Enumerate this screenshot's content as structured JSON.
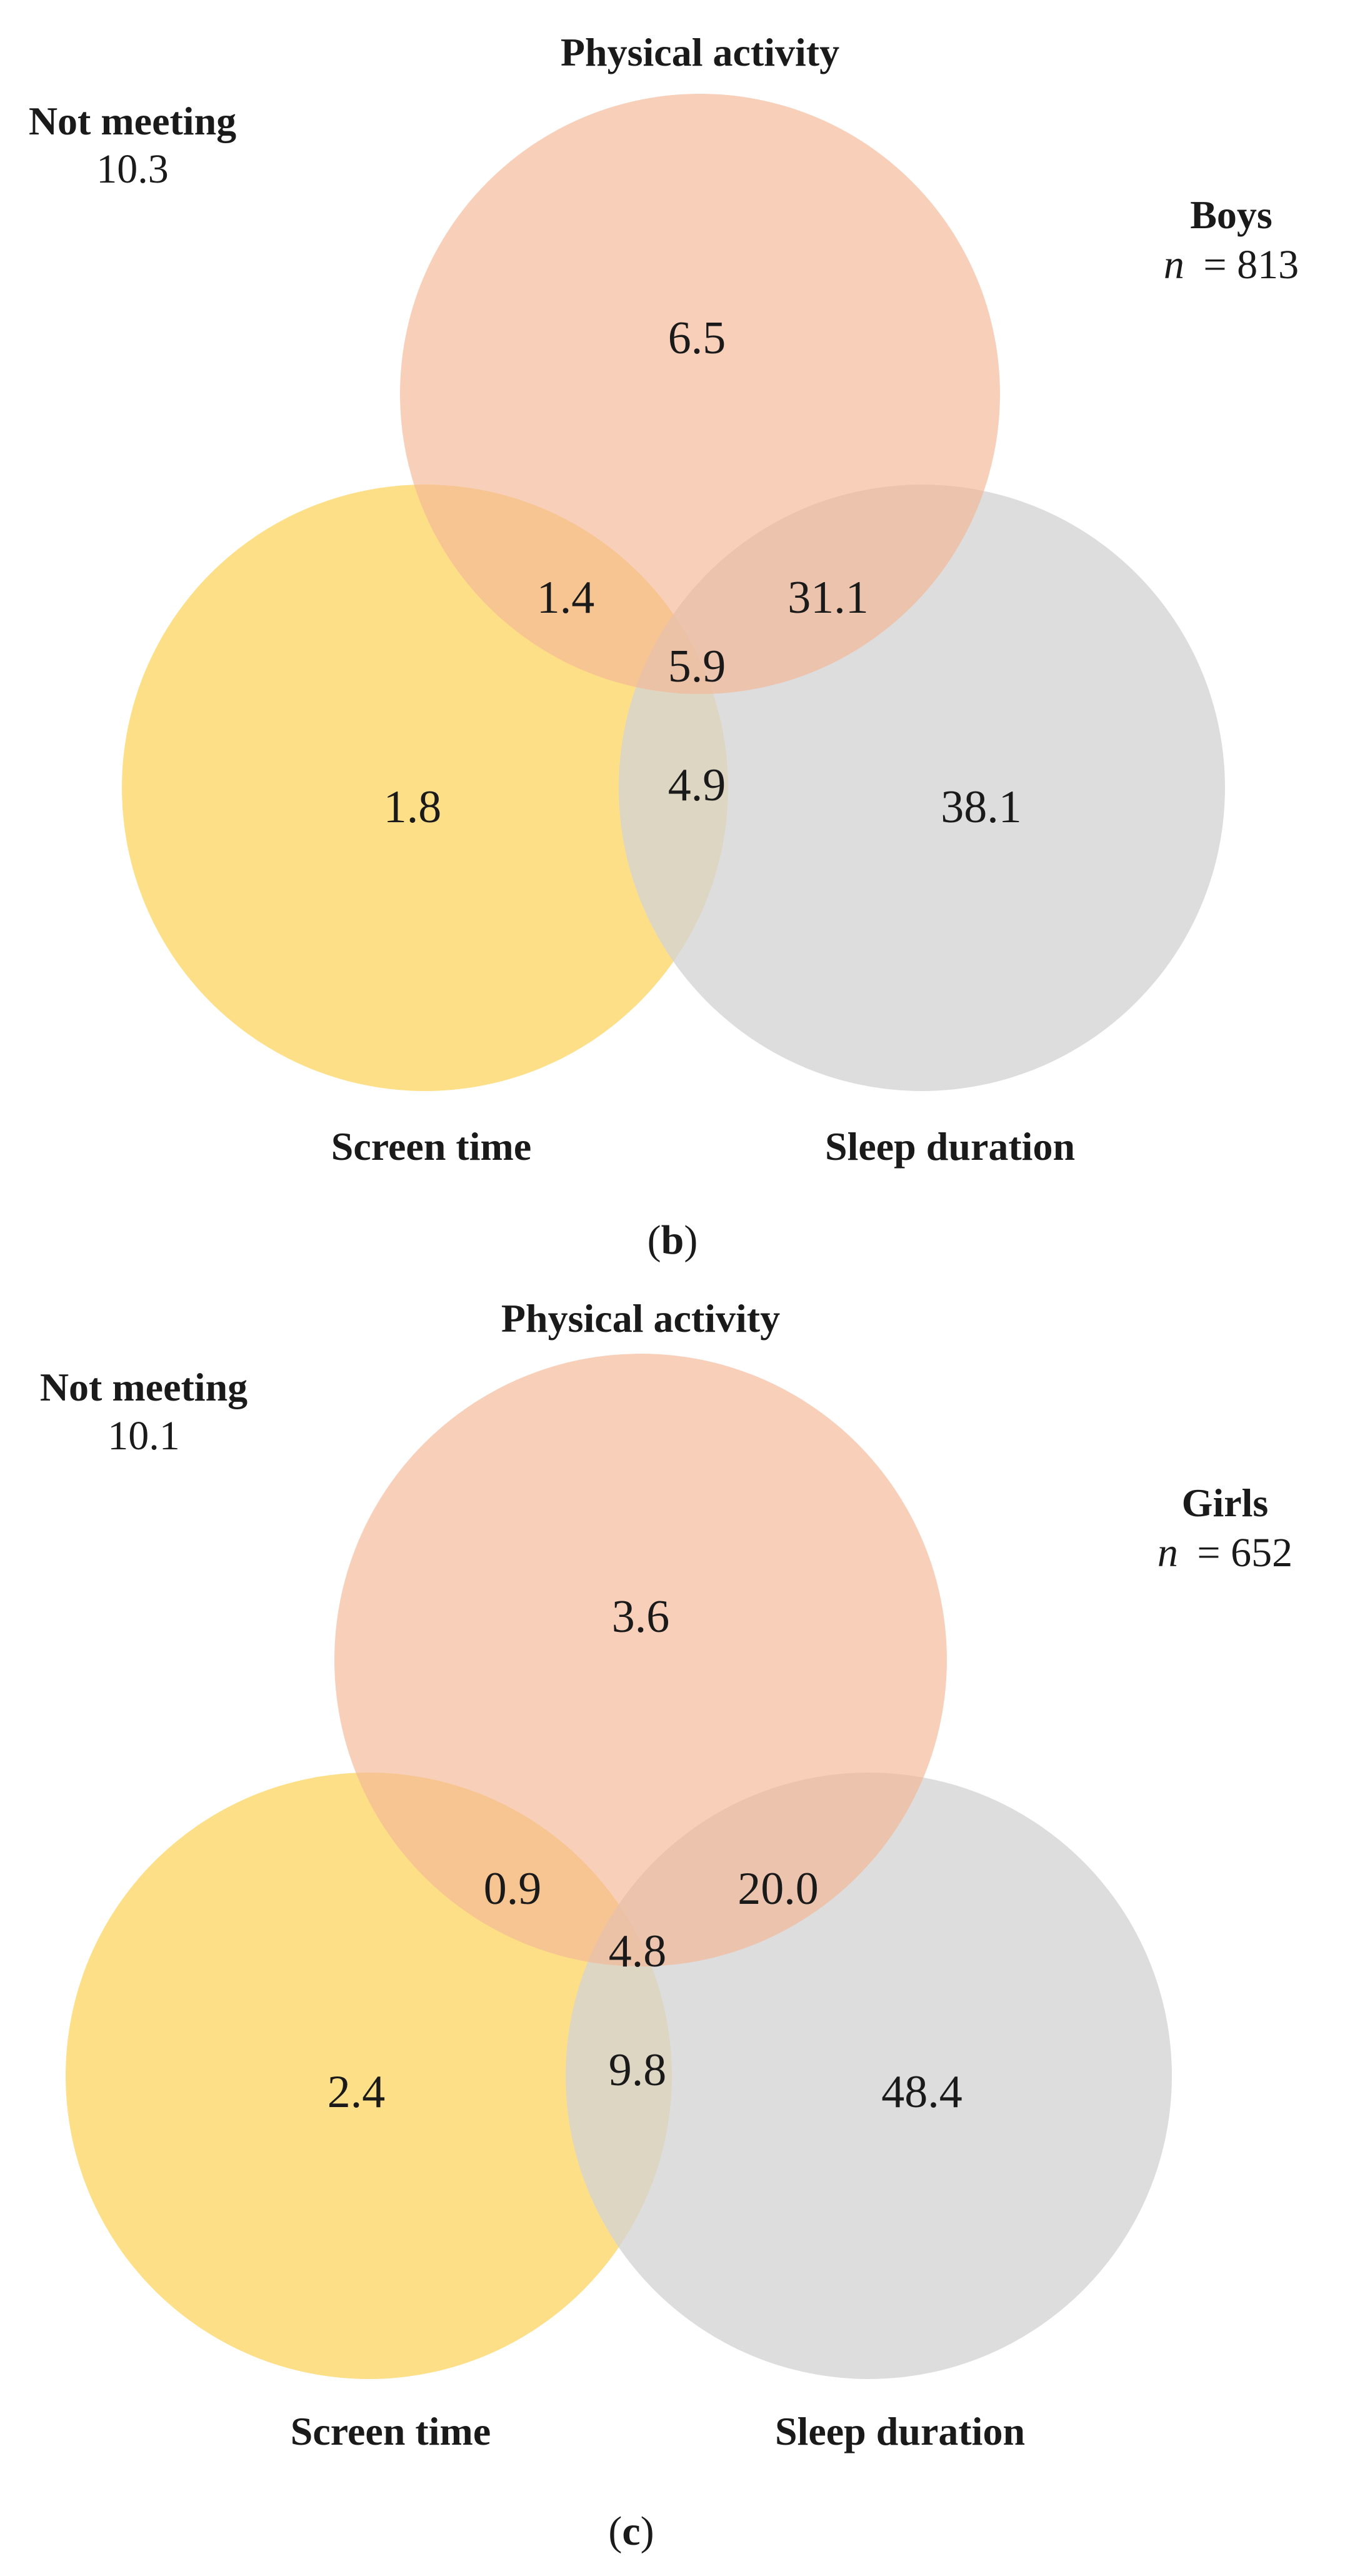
{
  "panels": [
    {
      "id": "b",
      "panel_label": "b",
      "group": "Boys",
      "n_label": "n",
      "n_value": "= 813",
      "not_meeting_label": "Not meeting",
      "not_meeting_value": "10.3",
      "sets": {
        "pa": {
          "label": "Physical activity",
          "color": "#F4B896"
        },
        "st": {
          "label": "Screen time",
          "color": "#FDDB7A"
        },
        "sd": {
          "label": "Sleep duration",
          "color": "#D3D3D3"
        }
      },
      "regions": {
        "pa_only": "6.5",
        "st_only": "1.8",
        "sd_only": "38.1",
        "pa_st": "1.4",
        "pa_sd": "31.1",
        "st_sd": "4.9",
        "all": "5.9"
      }
    },
    {
      "id": "c",
      "panel_label": "c",
      "group": "Girls",
      "n_label": "n",
      "n_value": "= 652",
      "not_meeting_label": "Not meeting",
      "not_meeting_value": "10.1",
      "sets": {
        "pa": {
          "label": "Physical activity",
          "color": "#F4B896"
        },
        "st": {
          "label": "Screen time",
          "color": "#FDDB7A"
        },
        "sd": {
          "label": "Sleep duration",
          "color": "#D3D3D3"
        }
      },
      "regions": {
        "pa_only": "3.6",
        "st_only": "2.4",
        "sd_only": "48.4",
        "pa_st": "0.9",
        "pa_sd": "20.0",
        "st_sd": "9.8",
        "all": "4.8"
      }
    }
  ]
}
